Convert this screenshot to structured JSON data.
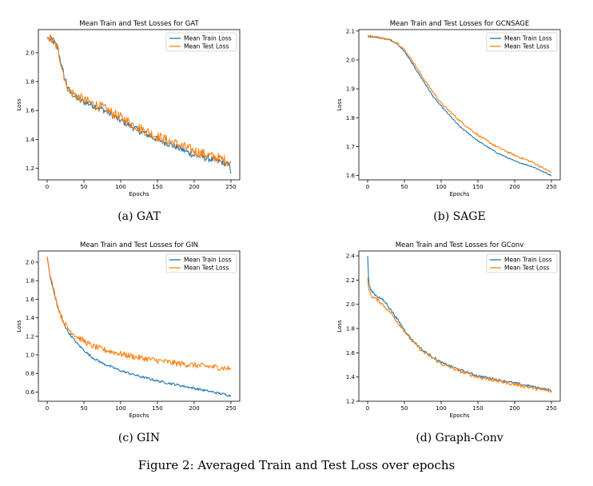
{
  "figure_caption": "Figure 2: Averaged Train and Test Loss over epochs",
  "colors": {
    "train": "#1f77b4",
    "test": "#ff7f0e"
  },
  "chart_data": [
    {
      "type": "line",
      "title": "Mean Train and Test Losses for GAT",
      "caption": "(a) GAT",
      "xlabel": "Epochs",
      "ylabel": "Loss",
      "xlim": [
        -12,
        262
      ],
      "ylim": [
        1.12,
        2.16
      ],
      "xticks": [
        0,
        50,
        100,
        150,
        200,
        250
      ],
      "yticks": [
        1.2,
        1.4,
        1.6,
        1.8,
        2.0
      ],
      "ytick_labels": [
        "1.2",
        "1.4",
        "1.6",
        "1.8",
        "2.0"
      ],
      "legend": "top-right",
      "grid": false,
      "series": [
        {
          "name": "Mean Train Loss",
          "color": "#1f77b4",
          "x": [
            0,
            5,
            10,
            15,
            20,
            25,
            30,
            40,
            50,
            75,
            100,
            125,
            150,
            175,
            200,
            225,
            240,
            248,
            250
          ],
          "y": [
            2.1,
            2.09,
            2.07,
            2.02,
            1.9,
            1.8,
            1.73,
            1.69,
            1.66,
            1.61,
            1.53,
            1.46,
            1.4,
            1.35,
            1.29,
            1.26,
            1.24,
            1.22,
            1.18
          ]
        },
        {
          "name": "Mean Test Loss",
          "color": "#ff7f0e",
          "x": [
            0,
            5,
            10,
            15,
            20,
            25,
            30,
            40,
            50,
            75,
            100,
            125,
            150,
            175,
            200,
            225,
            240,
            250
          ],
          "y": [
            2.11,
            2.09,
            2.07,
            2.02,
            1.9,
            1.8,
            1.74,
            1.7,
            1.67,
            1.62,
            1.55,
            1.48,
            1.42,
            1.37,
            1.32,
            1.28,
            1.26,
            1.23
          ]
        }
      ]
    },
    {
      "type": "line",
      "title": "Mean Train and Test Losses for GCNSAGE",
      "caption": "(b) SAGE",
      "xlabel": "Epochs",
      "ylabel": "Loss",
      "xlim": [
        -12,
        262
      ],
      "ylim": [
        1.585,
        2.105
      ],
      "xticks": [
        0,
        50,
        100,
        150,
        200,
        250
      ],
      "yticks": [
        1.6,
        1.7,
        1.8,
        1.9,
        2.0,
        2.1
      ],
      "ytick_labels": [
        "1.6",
        "1.7",
        "1.8",
        "1.9",
        "2.0",
        "2.1"
      ],
      "legend": "top-right",
      "grid": false,
      "series": [
        {
          "name": "Mean Train Loss",
          "color": "#1f77b4",
          "x": [
            0,
            10,
            20,
            30,
            40,
            50,
            60,
            70,
            80,
            90,
            100,
            125,
            150,
            175,
            200,
            225,
            250
          ],
          "y": [
            2.08,
            2.08,
            2.075,
            2.07,
            2.055,
            2.03,
            1.99,
            1.95,
            1.91,
            1.87,
            1.84,
            1.77,
            1.72,
            1.68,
            1.65,
            1.63,
            1.6
          ]
        },
        {
          "name": "Mean Test Loss",
          "color": "#ff7f0e",
          "x": [
            0,
            10,
            20,
            30,
            40,
            50,
            60,
            70,
            80,
            90,
            100,
            125,
            150,
            175,
            200,
            225,
            250
          ],
          "y": [
            2.085,
            2.08,
            2.075,
            2.07,
            2.06,
            2.035,
            2.0,
            1.96,
            1.92,
            1.885,
            1.85,
            1.79,
            1.74,
            1.7,
            1.67,
            1.645,
            1.61
          ]
        }
      ]
    },
    {
      "type": "line",
      "title": "Mean Train and Test Losses for GIN",
      "caption": "(c) GIN",
      "xlabel": "Epochs",
      "ylabel": "Loss",
      "xlim": [
        -12,
        262
      ],
      "ylim": [
        0.5,
        2.12
      ],
      "xticks": [
        0,
        50,
        100,
        150,
        200,
        250
      ],
      "yticks": [
        0.6,
        0.8,
        1.0,
        1.2,
        1.4,
        1.6,
        1.8,
        2.0
      ],
      "ytick_labels": [
        "0.6",
        "0.8",
        "1.0",
        "1.2",
        "1.4",
        "1.6",
        "1.8",
        "2.0"
      ],
      "legend": "top-right",
      "grid": false,
      "series": [
        {
          "name": "Mean Train Loss",
          "color": "#1f77b4",
          "x": [
            0,
            3,
            6,
            10,
            15,
            20,
            25,
            30,
            40,
            50,
            60,
            75,
            100,
            125,
            150,
            175,
            200,
            225,
            250
          ],
          "y": [
            2.05,
            1.9,
            1.78,
            1.65,
            1.5,
            1.39,
            1.3,
            1.23,
            1.13,
            1.05,
            0.98,
            0.91,
            0.83,
            0.77,
            0.72,
            0.68,
            0.64,
            0.6,
            0.56
          ]
        },
        {
          "name": "Mean Test Loss",
          "color": "#ff7f0e",
          "x": [
            0,
            3,
            6,
            10,
            15,
            20,
            25,
            30,
            40,
            50,
            60,
            75,
            100,
            125,
            150,
            175,
            200,
            225,
            250
          ],
          "y": [
            2.06,
            1.91,
            1.79,
            1.66,
            1.51,
            1.4,
            1.32,
            1.27,
            1.2,
            1.15,
            1.1,
            1.06,
            1.01,
            0.97,
            0.94,
            0.91,
            0.89,
            0.87,
            0.85
          ]
        }
      ]
    },
    {
      "type": "line",
      "title": "Mean Train and Test Losses for GConv",
      "caption": "(d) Graph-Conv",
      "xlabel": "Epochs",
      "ylabel": "Loss",
      "xlim": [
        -12,
        262
      ],
      "ylim": [
        1.2,
        2.44
      ],
      "xticks": [
        0,
        50,
        100,
        150,
        200,
        250
      ],
      "yticks": [
        1.2,
        1.4,
        1.6,
        1.8,
        2.0,
        2.2,
        2.4
      ],
      "ytick_labels": [
        "1.2",
        "1.4",
        "1.6",
        "1.8",
        "2.0",
        "2.2",
        "2.4"
      ],
      "legend": "top-right",
      "grid": false,
      "series": [
        {
          "name": "Mean Train Loss",
          "color": "#1f77b4",
          "x": [
            0,
            1,
            2,
            4,
            7,
            10,
            15,
            20,
            25,
            30,
            40,
            50,
            60,
            75,
            100,
            125,
            150,
            175,
            200,
            225,
            250
          ],
          "y": [
            2.4,
            2.25,
            2.16,
            2.12,
            2.1,
            2.08,
            2.06,
            2.04,
            2.01,
            1.97,
            1.88,
            1.79,
            1.71,
            1.62,
            1.52,
            1.46,
            1.41,
            1.38,
            1.35,
            1.32,
            1.29
          ]
        },
        {
          "name": "Mean Test Loss",
          "color": "#ff7f0e",
          "x": [
            0,
            1,
            2,
            4,
            7,
            10,
            15,
            20,
            25,
            30,
            40,
            50,
            60,
            75,
            100,
            125,
            150,
            175,
            200,
            225,
            250
          ],
          "y": [
            2.22,
            2.15,
            2.11,
            2.08,
            2.06,
            2.05,
            2.03,
            2.0,
            1.97,
            1.94,
            1.86,
            1.78,
            1.7,
            1.61,
            1.51,
            1.45,
            1.4,
            1.37,
            1.34,
            1.31,
            1.28
          ]
        }
      ]
    }
  ]
}
